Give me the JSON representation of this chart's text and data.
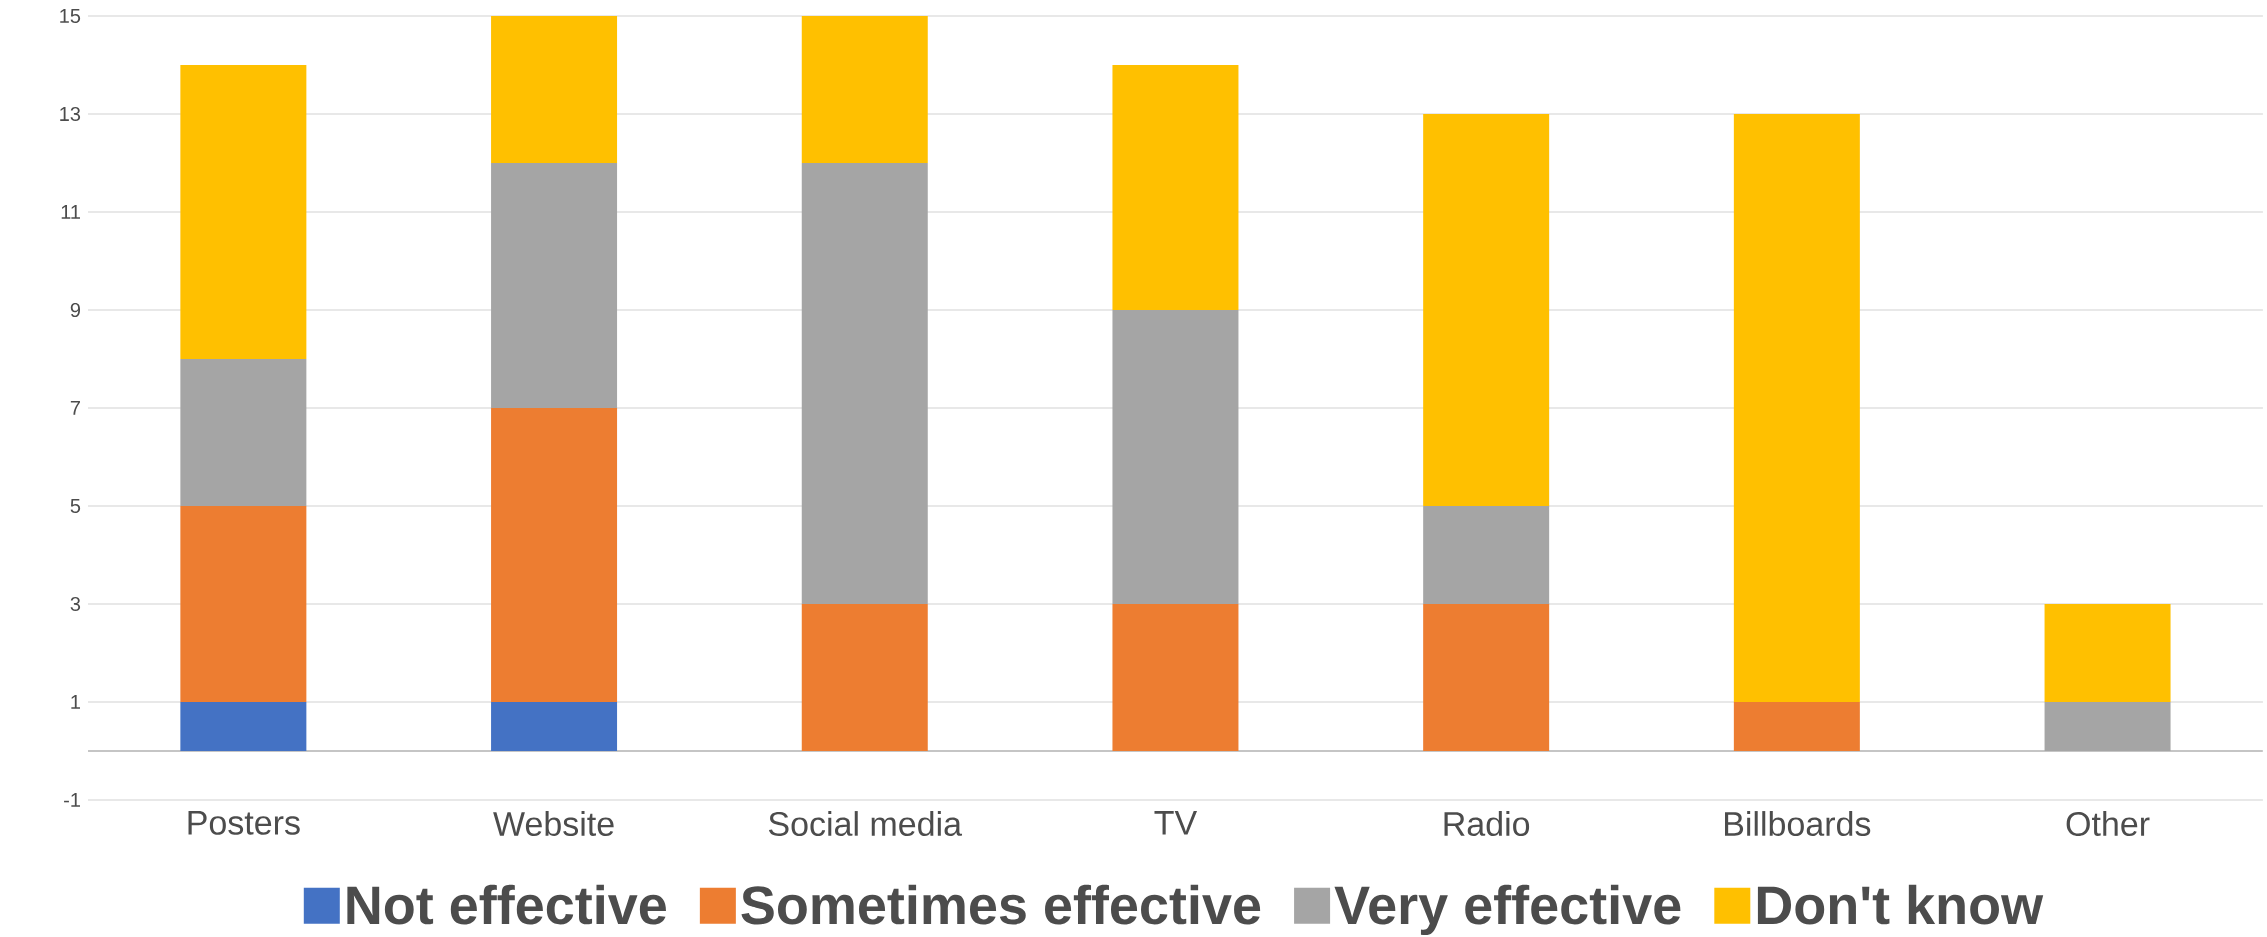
{
  "chart_data": {
    "type": "bar",
    "stacked": true,
    "categories": [
      "Posters",
      "Website",
      "Social media",
      "TV",
      "Radio",
      "Billboards",
      "Other"
    ],
    "series": [
      {
        "name": "Not effective",
        "color": "#4472c4",
        "values": [
          1,
          1,
          0,
          0,
          0,
          0,
          0
        ]
      },
      {
        "name": "Sometimes effective",
        "color": "#ed7d31",
        "values": [
          4,
          6,
          3,
          3,
          3,
          1,
          0
        ]
      },
      {
        "name": "Very effective",
        "color": "#a5a5a5",
        "values": [
          3,
          5,
          9,
          6,
          2,
          0,
          1
        ]
      },
      {
        "name": "Don't know",
        "color": "#ffc000",
        "values": [
          6,
          3,
          3,
          5,
          8,
          12,
          2
        ]
      }
    ],
    "ylim": [
      -1,
      15
    ],
    "yticks": [
      -1,
      1,
      3,
      5,
      7,
      9,
      11,
      13,
      15
    ],
    "grid": "y",
    "legend": "bottom"
  }
}
